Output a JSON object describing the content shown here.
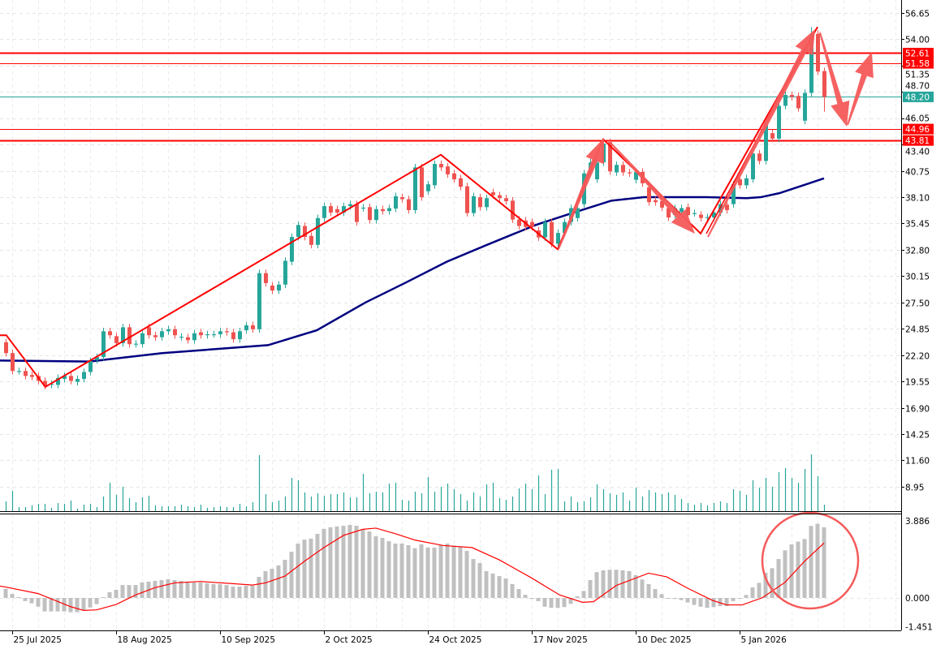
{
  "price_axis": {
    "ticks": [
      "56.65",
      "54.00",
      "51.35",
      "48.70",
      "46.05",
      "43.40",
      "40.75",
      "38.10",
      "35.45",
      "32.80",
      "30.15",
      "27.50",
      "24.85",
      "22.20",
      "19.55",
      "16.90",
      "14.25",
      "11.60",
      "8.95"
    ]
  },
  "macd_axis": {
    "ticks": [
      {
        "label": "3.886",
        "value": 3.886
      },
      {
        "label": "0.000",
        "value": 0
      },
      {
        "label": "-1.451",
        "value": -1.451
      }
    ]
  },
  "time_axis": {
    "ticks": [
      {
        "label": "25 Jul 2025",
        "index": 1
      },
      {
        "label": "18 Aug 2025",
        "index": 17
      },
      {
        "label": "10 Sep 2025",
        "index": 33
      },
      {
        "label": "2 Oct 2025",
        "index": 49
      },
      {
        "label": "24 Oct 2025",
        "index": 65
      },
      {
        "label": "17 Nov 2025",
        "index": 81
      },
      {
        "label": "10 Dec 2025",
        "index": 97
      },
      {
        "label": "5 Jan 2026",
        "index": 113
      }
    ]
  },
  "levels": [
    {
      "label": "52.61",
      "value": 52.61,
      "color": "#ff0000",
      "weight": "thick"
    },
    {
      "label": "51.58",
      "value": 51.58,
      "color": "#ff0000",
      "weight": "thin"
    },
    {
      "label": "48.20",
      "value": 48.2,
      "color": "#26a69a",
      "weight": "thin",
      "current_price": true
    },
    {
      "label": "44.96",
      "value": 44.96,
      "color": "#ff0000",
      "weight": "thin"
    },
    {
      "label": "43.81",
      "value": 43.81,
      "color": "#ff0000",
      "weight": "thick"
    }
  ],
  "colors": {
    "up": "#26a69a",
    "down": "#ef5350",
    "ma": "#000080",
    "zigzag": "#ff0000",
    "annotation": "#f55a5a",
    "macd_hist": "#c0c0c0",
    "macd_signal": "#ff0000",
    "volume": "#26a69a"
  },
  "chart_data": {
    "type": "candlestick",
    "ylim": [
      8.95,
      56.65
    ],
    "grid": true,
    "candles_oc": [
      [
        23.5,
        22.4
      ],
      [
        22.4,
        20.6
      ],
      [
        20.6,
        20.6
      ],
      [
        20.6,
        20.1
      ],
      [
        20.2,
        20.0
      ],
      [
        20.1,
        19.6
      ],
      [
        19.6,
        19.1
      ],
      [
        19.2,
        19.3
      ],
      [
        19.2,
        19.9
      ],
      [
        19.8,
        20.1
      ],
      [
        20.1,
        19.6
      ],
      [
        19.5,
        19.8
      ],
      [
        19.8,
        20.5
      ],
      [
        20.5,
        21.6
      ],
      [
        21.7,
        22.0
      ],
      [
        22.0,
        24.6
      ],
      [
        24.6,
        24.2
      ],
      [
        24.1,
        23.4
      ],
      [
        23.4,
        25.0
      ],
      [
        25.0,
        23.3
      ],
      [
        23.3,
        23.35
      ],
      [
        23.3,
        24.4
      ],
      [
        25.0,
        24.2
      ],
      [
        24.2,
        24.0
      ],
      [
        24.0,
        24.6
      ],
      [
        24.6,
        24.8
      ],
      [
        24.8,
        24.2
      ],
      [
        24.0,
        24.05
      ],
      [
        24.0,
        23.7
      ],
      [
        23.7,
        24.4
      ],
      [
        24.5,
        24.2
      ],
      [
        24.2,
        24.3
      ],
      [
        24.3,
        24.3
      ],
      [
        24.3,
        24.6
      ],
      [
        24.6,
        24.5
      ],
      [
        24.5,
        23.8
      ],
      [
        23.8,
        24.6
      ],
      [
        24.7,
        25.2
      ],
      [
        25.2,
        24.8
      ],
      [
        24.8,
        30.45
      ],
      [
        30.45,
        29.45
      ],
      [
        29.2,
        28.7
      ],
      [
        28.7,
        29.3
      ],
      [
        29.3,
        31.7
      ],
      [
        31.6,
        34.1
      ],
      [
        34.1,
        35.3
      ],
      [
        35.2,
        34.1
      ],
      [
        34.2,
        33.3
      ],
      [
        33.3,
        36.0
      ],
      [
        36.0,
        37.2
      ],
      [
        37.2,
        36.55
      ],
      [
        36.9,
        36.55
      ],
      [
        36.55,
        37.2
      ],
      [
        37.2,
        37.4
      ],
      [
        37.4,
        35.6
      ],
      [
        37.0,
        37.05
      ],
      [
        37.1,
        35.8
      ],
      [
        35.8,
        36.9
      ],
      [
        36.9,
        36.7
      ],
      [
        36.7,
        37.0
      ],
      [
        36.95,
        38.2
      ],
      [
        38.1,
        37.9
      ],
      [
        37.9,
        36.8
      ],
      [
        36.8,
        41.1
      ],
      [
        41.1,
        38.1
      ],
      [
        38.7,
        39.4
      ],
      [
        39.3,
        41.45
      ],
      [
        41.45,
        41.1
      ],
      [
        41.2,
        40.4
      ],
      [
        40.5,
        39.9
      ],
      [
        40.0,
        39.15
      ],
      [
        39.2,
        36.5
      ],
      [
        36.5,
        38.2
      ],
      [
        38.1,
        37.1
      ],
      [
        37.1,
        38.0
      ],
      [
        38.6,
        38.3
      ],
      [
        38.3,
        38.0
      ],
      [
        38.0,
        37.7
      ],
      [
        37.75,
        35.85
      ],
      [
        35.85,
        35.2
      ],
      [
        35.75,
        35.1
      ],
      [
        35.6,
        35.1
      ],
      [
        34.75,
        34.05
      ],
      [
        34.05,
        35.6
      ],
      [
        35.6,
        33.4
      ],
      [
        33.4,
        34.5
      ],
      [
        34.5,
        35.6
      ],
      [
        35.6,
        37.0
      ],
      [
        36.0,
        37.0
      ],
      [
        37.4,
        40.5
      ],
      [
        40.5,
        41.6
      ],
      [
        39.9,
        41.6
      ],
      [
        41.6,
        43.5
      ],
      [
        43.65,
        40.7
      ],
      [
        40.6,
        41.35
      ],
      [
        41.35,
        40.6
      ],
      [
        40.6,
        40.5
      ],
      [
        39.85,
        40.65
      ],
      [
        40.65,
        39.5
      ],
      [
        39.1,
        37.6
      ],
      [
        37.8,
        37.6
      ],
      [
        37.7,
        37.05
      ],
      [
        37.0,
        36.05
      ],
      [
        36.3,
        37.0
      ],
      [
        36.6,
        37.0
      ],
      [
        37.1,
        36.3
      ],
      [
        36.5,
        36.5
      ],
      [
        36.35,
        36.0
      ],
      [
        36.0,
        36.1
      ],
      [
        36.05,
        36.55
      ],
      [
        36.55,
        37.4
      ],
      [
        37.35,
        36.8
      ],
      [
        37.4,
        39.4
      ],
      [
        39.9,
        39.3
      ],
      [
        39.3,
        40.0
      ],
      [
        39.9,
        42.5
      ],
      [
        42.5,
        41.75
      ],
      [
        41.75,
        45.4
      ],
      [
        44.55,
        44.0
      ],
      [
        44.0,
        47.3
      ],
      [
        47.3,
        48.4
      ],
      [
        48.4,
        48.2
      ],
      [
        48.3,
        47.05
      ],
      [
        45.8,
        48.6
      ],
      [
        48.6,
        54.55
      ],
      [
        54.55,
        50.75
      ],
      [
        50.8,
        48.2
      ]
    ],
    "extremes": {
      "high": 55.24,
      "low": 18.95
    },
    "moving_average": [
      [
        -0.9,
        21.65
      ],
      [
        12.9,
        21.55
      ],
      [
        24.1,
        22.4
      ],
      [
        40.4,
        23.2
      ],
      [
        42.9,
        23.7
      ],
      [
        47.9,
        24.7
      ],
      [
        55.4,
        27.5
      ],
      [
        61.6,
        29.5
      ],
      [
        67.9,
        31.6
      ],
      [
        74.1,
        33.3
      ],
      [
        81.6,
        35.3
      ],
      [
        87,
        36.45
      ],
      [
        93.25,
        37.75
      ],
      [
        98.25,
        38.1
      ],
      [
        107.9,
        38.1
      ],
      [
        114.1,
        38.0
      ],
      [
        116.25,
        38.1
      ],
      [
        119.1,
        38.5
      ],
      [
        123.25,
        39.4
      ],
      [
        126,
        40.0
      ]
    ],
    "zigzag": [
      [
        -0.9,
        24.2
      ],
      [
        0.1,
        24.2
      ],
      [
        6.1,
        19.0
      ],
      [
        67,
        42.38
      ],
      [
        85,
        32.85
      ],
      [
        92,
        43.93
      ],
      [
        107,
        34.45
      ],
      [
        125,
        55.24
      ]
    ],
    "volume": [
      36,
      75,
      15,
      15,
      21,
      27,
      27,
      12,
      30,
      27,
      39,
      9,
      24,
      27,
      15,
      54,
      105,
      60,
      90,
      48,
      33,
      51,
      57,
      21,
      18,
      18,
      18,
      24,
      18,
      15,
      24,
      12,
      15,
      18,
      15,
      15,
      27,
      18,
      33,
      207,
      63,
      33,
      39,
      54,
      123,
      114,
      69,
      54,
      66,
      57,
      63,
      63,
      69,
      51,
      51,
      138,
      66,
      72,
      69,
      102,
      105,
      42,
      39,
      72,
      66,
      126,
      72,
      90,
      102,
      81,
      63,
      39,
      69,
      54,
      99,
      105,
      48,
      42,
      54,
      84,
      102,
      81,
      132,
      63,
      153,
      156,
      36,
      54,
      33,
      36,
      51,
      99,
      81,
      66,
      60,
      69,
      39,
      87,
      54,
      78,
      69,
      63,
      69,
      60,
      45,
      30,
      24,
      30,
      21,
      30,
      36,
      30,
      81,
      75,
      60,
      114,
      87,
      123,
      90,
      144,
      159,
      123,
      105,
      156,
      210,
      129,
      24
    ],
    "macd": {
      "ylim": [
        -1.451,
        3.886
      ],
      "histogram": [
        0.46,
        0.2,
        0.04,
        -0.16,
        -0.27,
        -0.44,
        -0.68,
        -0.68,
        -0.68,
        -0.68,
        -0.72,
        -0.72,
        -0.61,
        -0.48,
        -0.31,
        0.04,
        0.29,
        0.41,
        0.65,
        0.65,
        0.65,
        0.78,
        0.82,
        0.86,
        0.9,
        0.94,
        0.9,
        0.86,
        0.82,
        0.78,
        0.78,
        0.74,
        0.7,
        0.7,
        0.65,
        0.57,
        0.57,
        0.61,
        0.61,
        1.06,
        1.35,
        1.47,
        1.64,
        1.92,
        2.33,
        2.74,
        2.94,
        2.99,
        3.23,
        3.48,
        3.56,
        3.6,
        3.64,
        3.68,
        3.64,
        3.44,
        3.35,
        3.11,
        3.03,
        2.86,
        2.74,
        2.74,
        2.66,
        2.51,
        2.7,
        2.54,
        2.54,
        2.67,
        2.74,
        2.64,
        2.58,
        2.37,
        1.96,
        1.76,
        1.35,
        1.23,
        1.1,
        0.98,
        0.7,
        0.45,
        0.16,
        -0.05,
        -0.16,
        -0.44,
        -0.5,
        -0.5,
        -0.46,
        -0.3,
        0.08,
        0.35,
        0.9,
        1.3,
        1.39,
        1.42,
        1.42,
        1.39,
        1.35,
        1.15,
        0.93,
        0.7,
        0.45,
        0.19,
        -0.03,
        -0.05,
        -0.11,
        -0.23,
        -0.35,
        -0.44,
        -0.5,
        -0.46,
        -0.41,
        -0.41,
        -0.16,
        -0.03,
        0.15,
        0.53,
        0.76,
        1.27,
        1.5,
        1.96,
        2.4,
        2.7,
        2.84,
        2.97,
        3.63,
        3.74,
        3.56
      ],
      "signal": [
        [
          -0.9,
          0.6
        ],
        [
          0,
          0.55
        ],
        [
          5,
          0.22
        ],
        [
          10,
          -0.44
        ],
        [
          12,
          -0.63
        ],
        [
          14,
          -0.6
        ],
        [
          17,
          -0.33
        ],
        [
          20,
          0.15
        ],
        [
          23,
          0.52
        ],
        [
          26,
          0.76
        ],
        [
          30,
          0.83
        ],
        [
          35,
          0.72
        ],
        [
          38,
          0.65
        ],
        [
          40,
          0.76
        ],
        [
          43,
          1.1
        ],
        [
          46,
          1.85
        ],
        [
          49,
          2.54
        ],
        [
          52,
          3.15
        ],
        [
          55,
          3.46
        ],
        [
          57,
          3.52
        ],
        [
          60,
          3.24
        ],
        [
          63,
          2.92
        ],
        [
          67.4,
          2.64
        ],
        [
          71.8,
          2.54
        ],
        [
          76,
          1.92
        ],
        [
          80.8,
          1.04
        ],
        [
          85.3,
          0.15
        ],
        [
          88.8,
          -0.22
        ],
        [
          90.5,
          -0.19
        ],
        [
          94,
          0.63
        ],
        [
          99,
          1.25
        ],
        [
          101.8,
          1.06
        ],
        [
          105,
          0.49
        ],
        [
          108.8,
          -0.12
        ],
        [
          111,
          -0.35
        ],
        [
          113.4,
          -0.35
        ],
        [
          116.5,
          0.01
        ],
        [
          120,
          0.79
        ],
        [
          123,
          1.85
        ],
        [
          126,
          2.77
        ]
      ]
    }
  }
}
